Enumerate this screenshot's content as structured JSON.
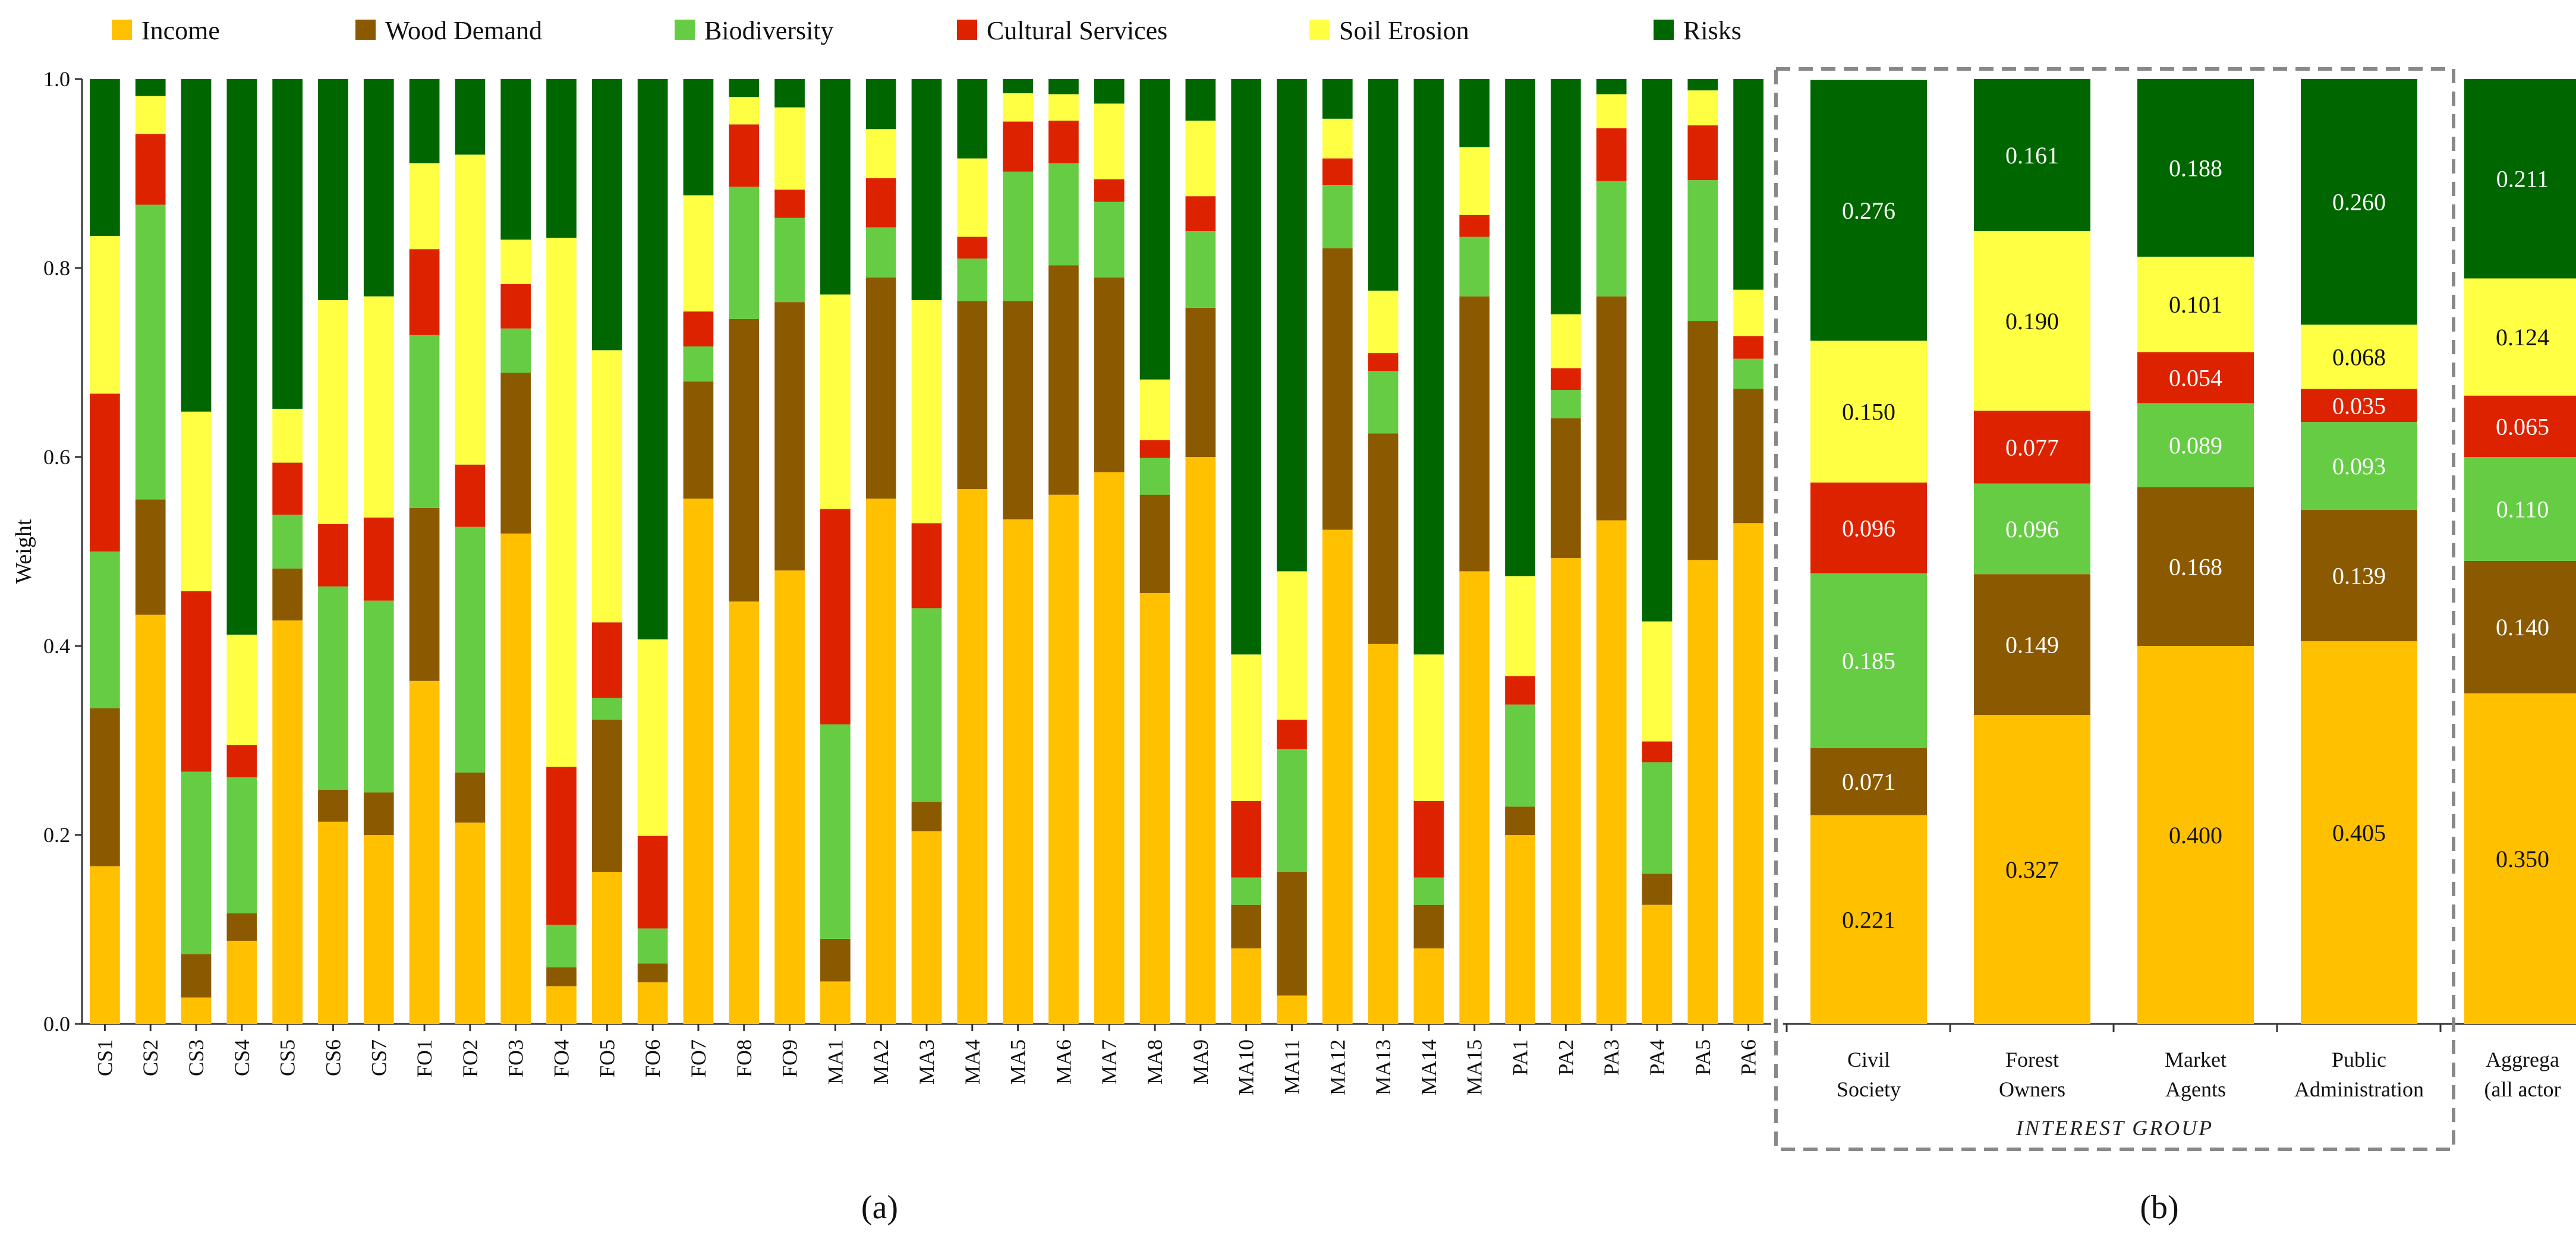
{
  "legend": [
    {
      "key": "income",
      "label": "Income",
      "color": "#FFC000"
    },
    {
      "key": "wood",
      "label": "Wood Demand",
      "color": "#8B5A00"
    },
    {
      "key": "bio",
      "label": "Biodiversity",
      "color": "#66CC44"
    },
    {
      "key": "cult",
      "label": "Cultural Services",
      "color": "#DD2200"
    },
    {
      "key": "soil",
      "label": "Soil Erosion",
      "color": "#FFFF44"
    },
    {
      "key": "risk",
      "label": "Risks",
      "color": "#006600"
    }
  ],
  "panel_a_label": "(a)",
  "panel_b_label": "(b)",
  "interest_group_caption": "INTEREST GROUP",
  "chart_data": [
    {
      "type": "bar",
      "stacked": true,
      "ylabel": "Weight",
      "ylim": [
        0,
        1
      ],
      "yticks": [
        "0.0",
        "0.2",
        "0.4",
        "0.6",
        "0.8",
        "1.0"
      ],
      "categories": [
        "CS1",
        "CS2",
        "CS3",
        "CS4",
        "CS5",
        "CS6",
        "CS7",
        "FO1",
        "FO2",
        "FO3",
        "FO4",
        "FO5",
        "FO6",
        "FO7",
        "FO8",
        "FO9",
        "MA1",
        "MA2",
        "MA3",
        "MA4",
        "MA5",
        "MA6",
        "MA7",
        "MA8",
        "MA9",
        "MA10",
        "MA11",
        "MA12",
        "MA13",
        "MA14",
        "MA15",
        "PA1",
        "PA2",
        "PA3",
        "PA4",
        "PA5",
        "PA6"
      ],
      "series": [
        {
          "name": "Income",
          "values": [
            0.167,
            0.433,
            0.028,
            0.088,
            0.427,
            0.214,
            0.2,
            0.363,
            0.213,
            0.519,
            0.04,
            0.161,
            0.044,
            0.556,
            0.447,
            0.48,
            0.045,
            0.556,
            0.204,
            0.566,
            0.534,
            0.56,
            0.584,
            0.456,
            0.6,
            0.08,
            0.03,
            0.523,
            0.402,
            0.08,
            0.479,
            0.2,
            0.493,
            0.533,
            0.126,
            0.491,
            0.53
          ]
        },
        {
          "name": "Wood Demand",
          "values": [
            0.167,
            0.122,
            0.046,
            0.029,
            0.055,
            0.034,
            0.045,
            0.183,
            0.053,
            0.17,
            0.02,
            0.161,
            0.02,
            0.124,
            0.299,
            0.284,
            0.045,
            0.234,
            0.031,
            0.199,
            0.231,
            0.243,
            0.206,
            0.104,
            0.158,
            0.046,
            0.131,
            0.298,
            0.223,
            0.046,
            0.291,
            0.03,
            0.148,
            0.237,
            0.033,
            0.253,
            0.142
          ]
        },
        {
          "name": "Biodiversity",
          "values": [
            0.166,
            0.312,
            0.193,
            0.144,
            0.057,
            0.215,
            0.203,
            0.183,
            0.26,
            0.047,
            0.045,
            0.023,
            0.037,
            0.037,
            0.14,
            0.089,
            0.227,
            0.053,
            0.205,
            0.045,
            0.137,
            0.108,
            0.08,
            0.039,
            0.081,
            0.029,
            0.13,
            0.067,
            0.066,
            0.029,
            0.063,
            0.108,
            0.03,
            0.122,
            0.118,
            0.149,
            0.032
          ]
        },
        {
          "name": "Cultural Services",
          "values": [
            0.167,
            0.075,
            0.191,
            0.034,
            0.055,
            0.066,
            0.088,
            0.091,
            0.066,
            0.047,
            0.167,
            0.08,
            0.098,
            0.037,
            0.066,
            0.03,
            0.228,
            0.052,
            0.09,
            0.023,
            0.053,
            0.045,
            0.024,
            0.019,
            0.037,
            0.081,
            0.031,
            0.028,
            0.019,
            0.081,
            0.023,
            0.03,
            0.023,
            0.056,
            0.022,
            0.058,
            0.024
          ]
        },
        {
          "name": "Soil Erosion",
          "values": [
            0.167,
            0.04,
            0.19,
            0.117,
            0.057,
            0.237,
            0.234,
            0.091,
            0.328,
            0.047,
            0.56,
            0.288,
            0.208,
            0.123,
            0.029,
            0.087,
            0.227,
            0.052,
            0.236,
            0.083,
            0.03,
            0.028,
            0.08,
            0.064,
            0.08,
            0.155,
            0.157,
            0.042,
            0.066,
            0.155,
            0.072,
            0.106,
            0.057,
            0.036,
            0.127,
            0.037,
            0.049
          ]
        },
        {
          "name": "Risks",
          "values": [
            0.166,
            0.018,
            0.352,
            0.588,
            0.349,
            0.234,
            0.23,
            0.089,
            0.08,
            0.17,
            0.168,
            0.287,
            0.593,
            0.123,
            0.019,
            0.03,
            0.228,
            0.053,
            0.234,
            0.084,
            0.015,
            0.016,
            0.026,
            0.318,
            0.044,
            0.609,
            0.521,
            0.042,
            0.224,
            0.609,
            0.072,
            0.526,
            0.249,
            0.016,
            0.574,
            0.012,
            0.223
          ]
        }
      ]
    },
    {
      "type": "bar",
      "stacked": true,
      "ylim": [
        0,
        1
      ],
      "categories": [
        [
          "Civil",
          "Society"
        ],
        [
          "Forest",
          "Owners"
        ],
        [
          "Market",
          "Agents"
        ],
        [
          "Public",
          "Administration"
        ],
        [
          "Aggrega",
          "(all actor"
        ]
      ],
      "series": [
        {
          "name": "Income",
          "values": [
            0.221,
            0.327,
            0.4,
            0.405,
            0.35
          ],
          "labels": [
            "0.221",
            "0.327",
            "0.400",
            "0.405",
            "0.350"
          ]
        },
        {
          "name": "Wood Demand",
          "values": [
            0.071,
            0.149,
            0.168,
            0.139,
            0.14
          ],
          "labels": [
            "0.071",
            "0.149",
            "0.168",
            "0.139",
            "0.140"
          ]
        },
        {
          "name": "Biodiversity",
          "values": [
            0.185,
            0.096,
            0.089,
            0.093,
            0.11
          ],
          "labels": [
            "0.185",
            "0.096",
            "0.089",
            "0.093",
            "0.110"
          ]
        },
        {
          "name": "Cultural Services",
          "values": [
            0.096,
            0.077,
            0.054,
            0.035,
            0.065
          ],
          "labels": [
            "0.096",
            "0.077",
            "0.054",
            "0.035",
            "0.065"
          ]
        },
        {
          "name": "Soil Erosion",
          "values": [
            0.15,
            0.19,
            0.101,
            0.068,
            0.124
          ],
          "labels": [
            "0.150",
            "0.190",
            "0.101",
            "0.068",
            "0.124"
          ]
        },
        {
          "name": "Risks",
          "values": [
            0.276,
            0.161,
            0.188,
            0.26,
            0.211
          ],
          "labels": [
            "0.276",
            "0.161",
            "0.188",
            "0.260",
            "0.211"
          ]
        }
      ]
    }
  ]
}
